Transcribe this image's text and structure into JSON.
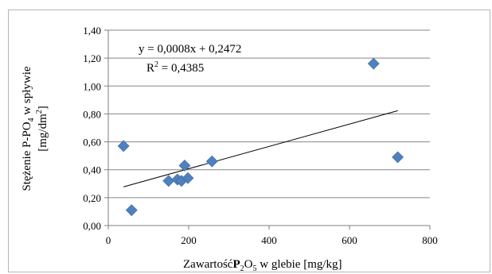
{
  "chart_data": {
    "type": "scatter",
    "xlabel_parts": [
      "Zawartość",
      "P",
      "2",
      "O",
      "5",
      " w glebie [mg/kg]"
    ],
    "ylabel_line1_parts": [
      "Stężenie  P-PO",
      "4",
      " w spływie"
    ],
    "ylabel_line2_parts": [
      "[mg/dm",
      "2",
      "]"
    ],
    "xlim": [
      0,
      800
    ],
    "ylim": [
      0,
      1.4
    ],
    "x_ticks": [
      0,
      200,
      400,
      600,
      800
    ],
    "x_tick_labels": [
      "0",
      "200",
      "400",
      "600",
      "800"
    ],
    "y_ticks": [
      0,
      0.2,
      0.4,
      0.6,
      0.8,
      1.0,
      1.2,
      1.4
    ],
    "y_tick_labels": [
      "0,00",
      "0,20",
      "0,40",
      "0,60",
      "0,80",
      "1,00",
      "1,20",
      "1,40"
    ],
    "grid": "horizontal",
    "points": [
      {
        "x": 38,
        "y": 0.57
      },
      {
        "x": 58,
        "y": 0.11
      },
      {
        "x": 150,
        "y": 0.32
      },
      {
        "x": 172,
        "y": 0.33
      },
      {
        "x": 182,
        "y": 0.32
      },
      {
        "x": 190,
        "y": 0.43
      },
      {
        "x": 198,
        "y": 0.34
      },
      {
        "x": 258,
        "y": 0.46
      },
      {
        "x": 660,
        "y": 1.16
      },
      {
        "x": 720,
        "y": 0.49
      }
    ],
    "trendline": {
      "slope": 0.0008,
      "intercept": 0.2472,
      "x_range": [
        38,
        720
      ]
    },
    "equation_text": "y = 0,0008x + 0,2472",
    "r2_parts": [
      "R",
      "2",
      " = 0,4385"
    ],
    "marker_color": "#4f81bd"
  }
}
